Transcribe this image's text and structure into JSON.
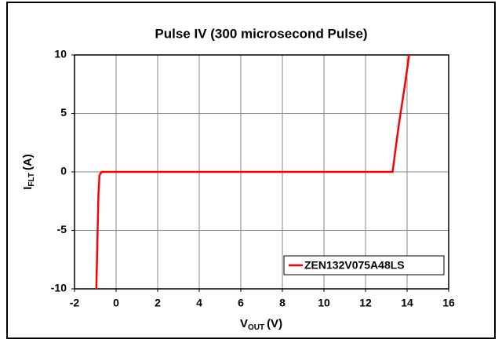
{
  "chart_data": {
    "type": "line",
    "title": "Pulse IV (300 microsecond Pulse)",
    "x_label": {
      "main": "V",
      "sub": "OUT",
      "unit": "(V)"
    },
    "y_label": {
      "main": "I",
      "sub": "FLT",
      "unit": "(A)"
    },
    "x": [
      -0.95,
      -0.9,
      -0.85,
      -0.8,
      -0.7,
      13.3,
      13.6,
      13.9,
      14.1
    ],
    "series": [
      {
        "name": "ZEN132V075A48LS",
        "color": "#ff0000",
        "values": [
          -10,
          -6,
          -2,
          -0.3,
          0,
          0,
          4,
          7.5,
          10
        ]
      }
    ],
    "xlim": [
      -2,
      16
    ],
    "xticks": [
      -2,
      0,
      2,
      4,
      6,
      8,
      10,
      12,
      14,
      16
    ],
    "ylim": [
      -10,
      10
    ],
    "yticks": [
      -10,
      -5,
      0,
      5,
      10
    ],
    "grid": true,
    "legend": "lower right"
  }
}
